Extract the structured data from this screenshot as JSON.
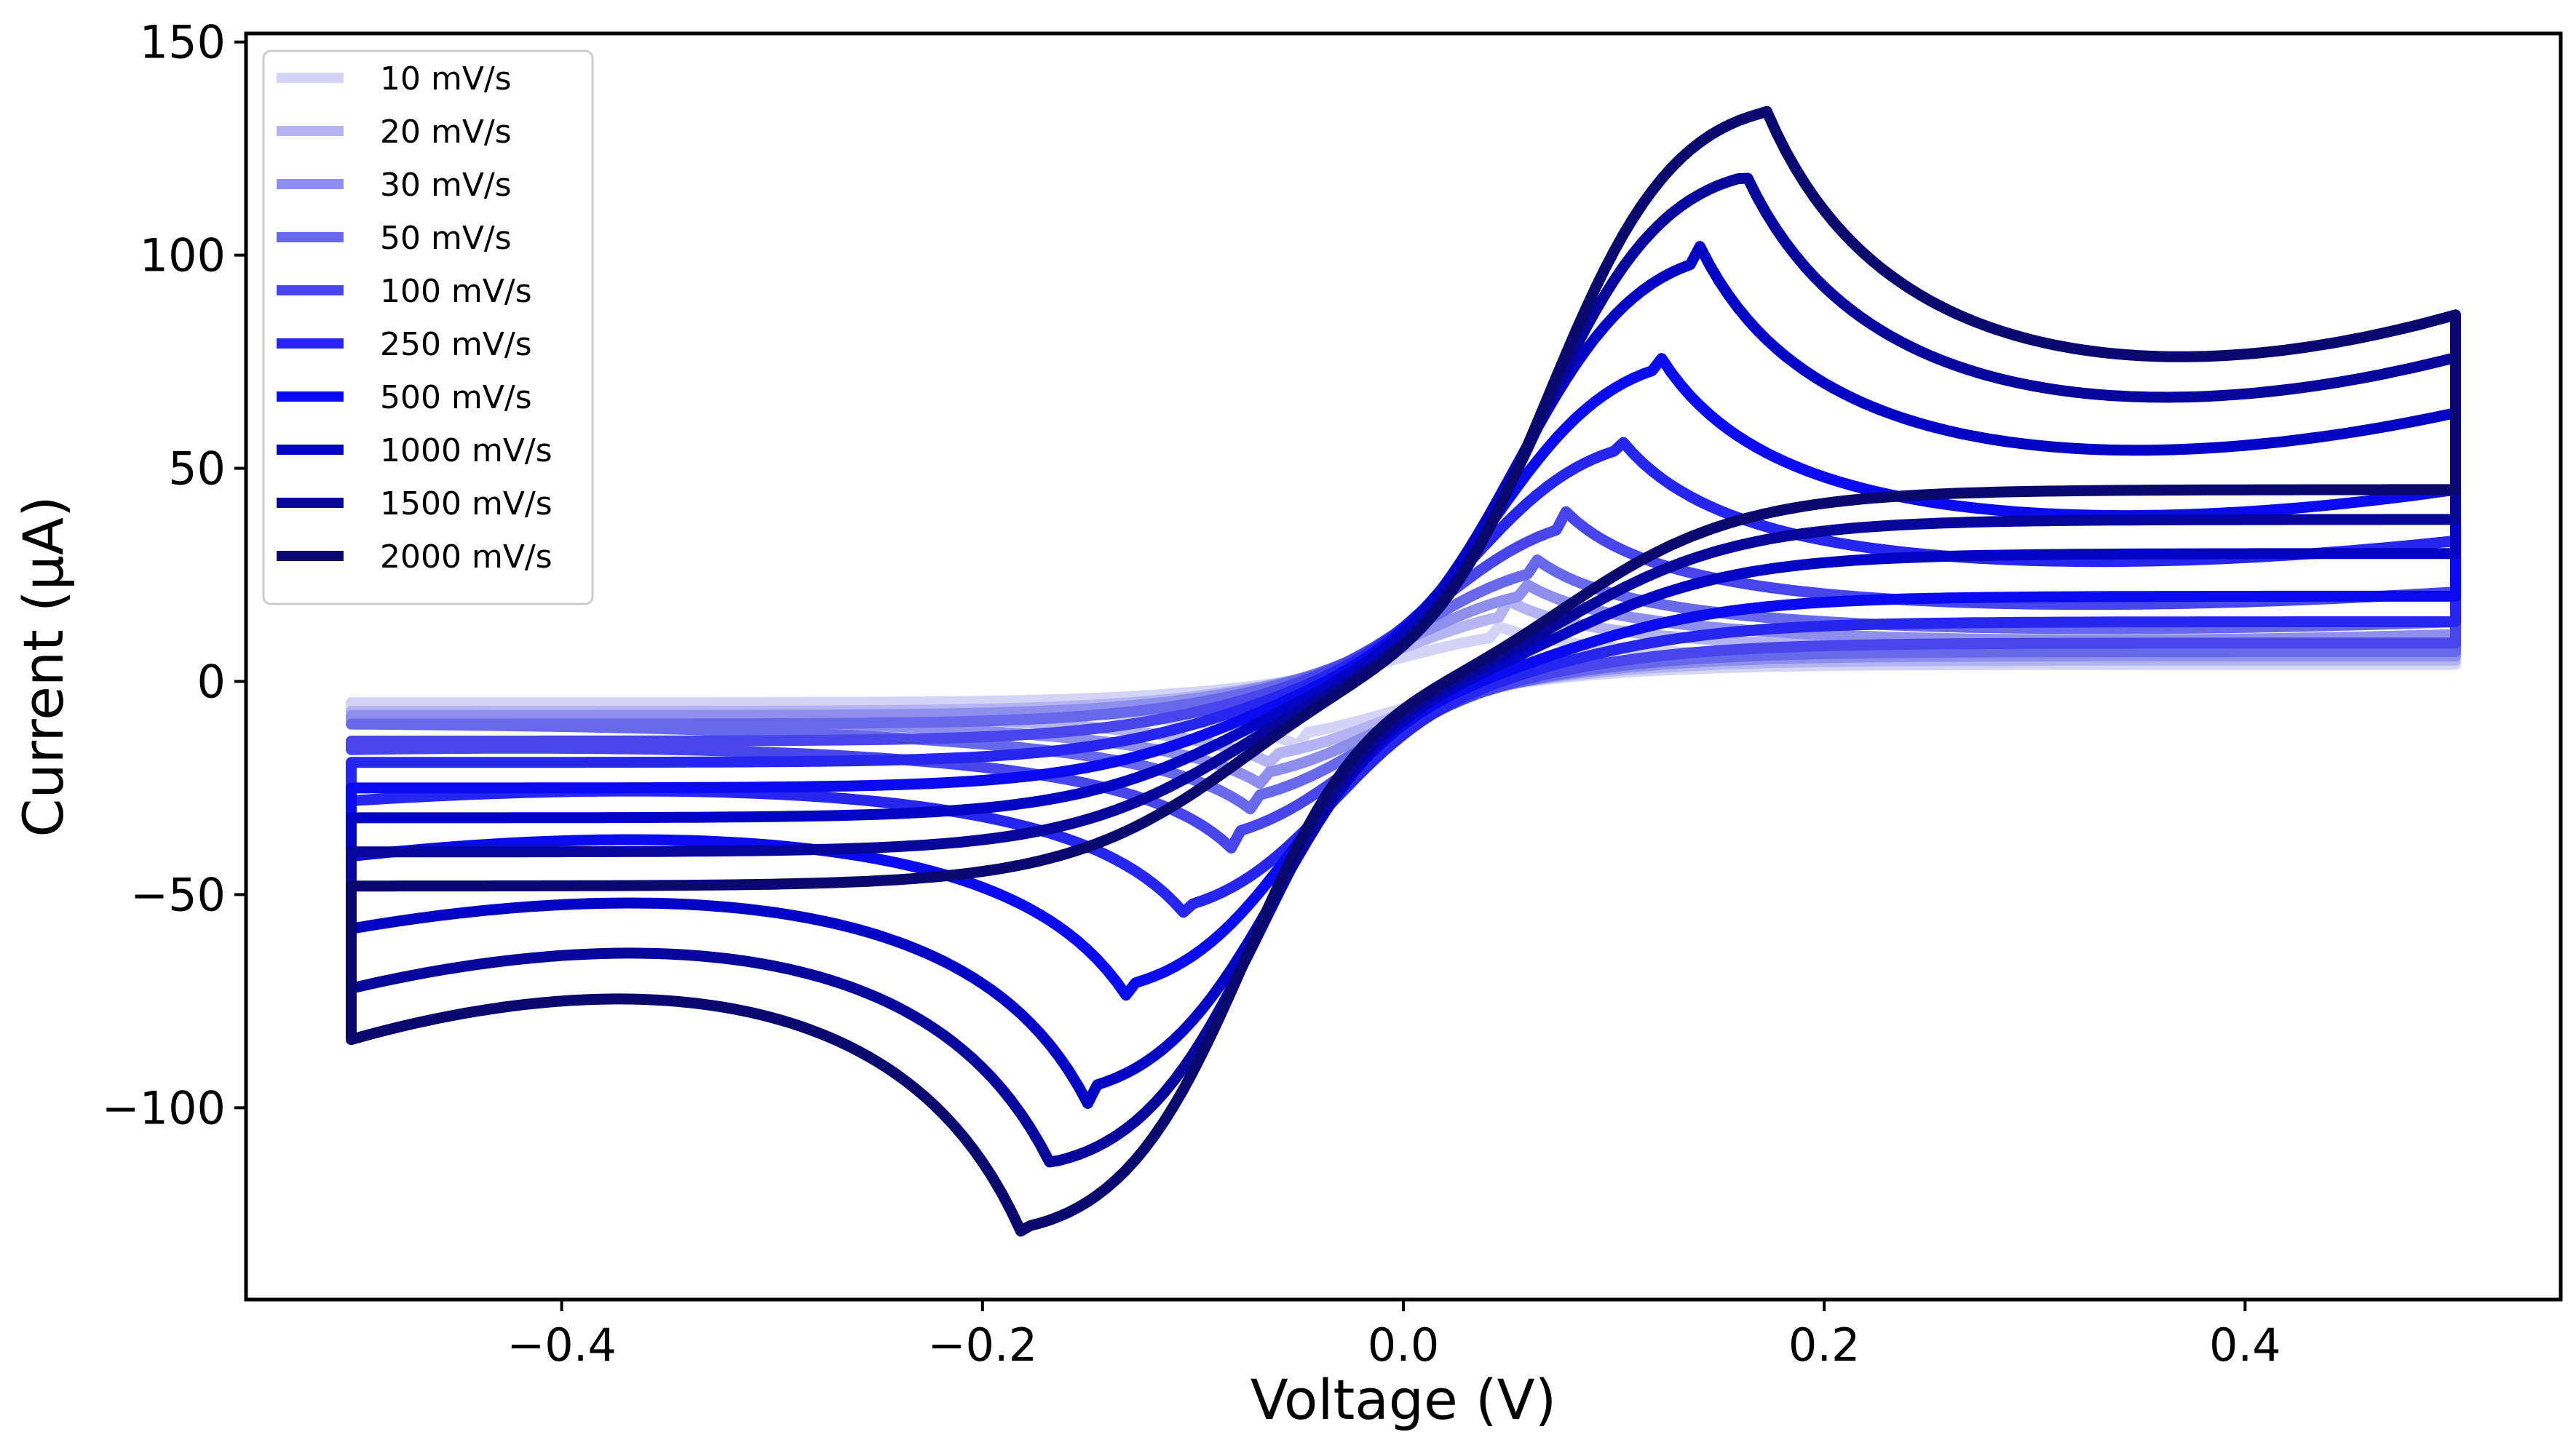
{
  "chart_data": {
    "type": "line",
    "title": "",
    "xlabel": "Voltage (V)",
    "ylabel": "Current (μA)",
    "xlim": [
      -0.55,
      0.55
    ],
    "ylim": [
      -145,
      152
    ],
    "xticks": [
      -0.4,
      -0.2,
      0.0,
      0.2,
      0.4
    ],
    "xtick_labels": [
      "−0.4",
      "−0.2",
      "0.0",
      "0.2",
      "0.4"
    ],
    "yticks": [
      -100,
      -50,
      0,
      50,
      100,
      150
    ],
    "ytick_labels": [
      "−100",
      "−50",
      "0",
      "50",
      "100",
      "150"
    ],
    "grid": false,
    "legend_position": "upper-left",
    "series": [
      {
        "name": "10 mV/s",
        "color": "#d4d4f7",
        "peak_anodic": [
          0.045,
          13
        ],
        "peak_cathodic": [
          -0.05,
          -15
        ],
        "i_end_plus": [
          6,
          4
        ],
        "i_end_minus": [
          -6,
          -5
        ]
      },
      {
        "name": "20 mV/s",
        "color": "#b4b4f2",
        "peak_anodic": [
          0.05,
          19
        ],
        "peak_cathodic": [
          -0.06,
          -20
        ],
        "i_end_plus": [
          9,
          5
        ],
        "i_end_minus": [
          -7,
          -7
        ]
      },
      {
        "name": "30 mV/s",
        "color": "#8e8eed",
        "peak_anodic": [
          0.055,
          24
        ],
        "peak_cathodic": [
          -0.065,
          -25
        ],
        "i_end_plus": [
          11,
          6
        ],
        "i_end_minus": [
          -9,
          -8
        ]
      },
      {
        "name": "50 mV/s",
        "color": "#6868ea",
        "peak_anodic": [
          0.06,
          30
        ],
        "peak_cathodic": [
          -0.07,
          -31
        ],
        "i_end_plus": [
          14,
          7
        ],
        "i_end_minus": [
          -10,
          -10
        ]
      },
      {
        "name": "100 mV/s",
        "color": "#4646ea",
        "peak_anodic": [
          0.075,
          41
        ],
        "peak_cathodic": [
          -0.08,
          -40
        ],
        "i_end_plus": [
          21,
          9
        ],
        "i_end_minus": [
          -16,
          -14
        ]
      },
      {
        "name": "250 mV/s",
        "color": "#2626ee",
        "peak_anodic": [
          0.1,
          59
        ],
        "peak_cathodic": [
          -0.1,
          -57
        ],
        "i_end_plus": [
          33,
          14
        ],
        "i_end_minus": [
          -28,
          -19
        ]
      },
      {
        "name": "500 mV/s",
        "color": "#0a0af0",
        "peak_anodic": [
          0.12,
          78
        ],
        "peak_cathodic": [
          -0.13,
          -75
        ],
        "i_end_plus": [
          45,
          20
        ],
        "i_end_minus": [
          -41,
          -25
        ]
      },
      {
        "name": "1000 mV/s",
        "color": "#0404c4",
        "peak_anodic": [
          0.14,
          103
        ],
        "peak_cathodic": [
          -0.15,
          -99
        ],
        "i_end_plus": [
          63,
          30
        ],
        "i_end_minus": [
          -58,
          -32
        ]
      },
      {
        "name": "1500 mV/s",
        "color": "#06069c",
        "peak_anodic": [
          0.16,
          122
        ],
        "peak_cathodic": [
          -0.165,
          -116
        ],
        "i_end_plus": [
          76,
          38
        ],
        "i_end_minus": [
          -72,
          -40
        ]
      },
      {
        "name": "2000 mV/s",
        "color": "#08086e",
        "peak_anodic": [
          0.17,
          137
        ],
        "peak_cathodic": [
          -0.18,
          -131
        ],
        "i_end_plus": [
          86,
          45
        ],
        "i_end_minus": [
          -84,
          -48
        ]
      }
    ],
    "sweep": {
      "v_min": -0.5,
      "v_max": 0.5,
      "e_half": 0.0,
      "switch_sharpness": 34,
      "rise_width": 0.035
    }
  }
}
